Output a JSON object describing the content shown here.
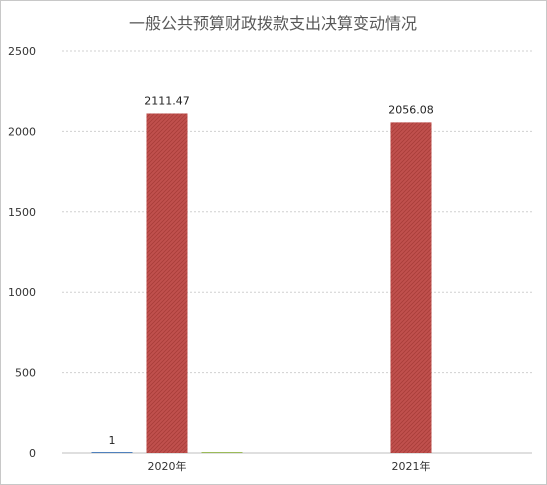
{
  "chart_data": {
    "type": "bar",
    "title": "一般公共预算财政拨款支出决算变动情况",
    "xlabel": "",
    "ylabel": "",
    "ylim": [
      0,
      2500
    ],
    "yticks": [
      0,
      500,
      1000,
      1500,
      2000,
      2500
    ],
    "grid": true,
    "categories": [
      "2020年",
      "2021年"
    ],
    "series": [
      {
        "values": [
          1,
          null
        ],
        "color": "#4f81bd"
      },
      {
        "values": [
          2111.47,
          2056.08
        ],
        "color": "#c0504d"
      },
      {
        "values": [
          2,
          null
        ],
        "color": "#9bbb59"
      }
    ],
    "data_labels": [
      {
        "series": 0,
        "category": 0,
        "text": "1"
      },
      {
        "series": 1,
        "category": 0,
        "text": "2111.47"
      },
      {
        "series": 1,
        "category": 1,
        "text": "2056.08"
      }
    ]
  }
}
